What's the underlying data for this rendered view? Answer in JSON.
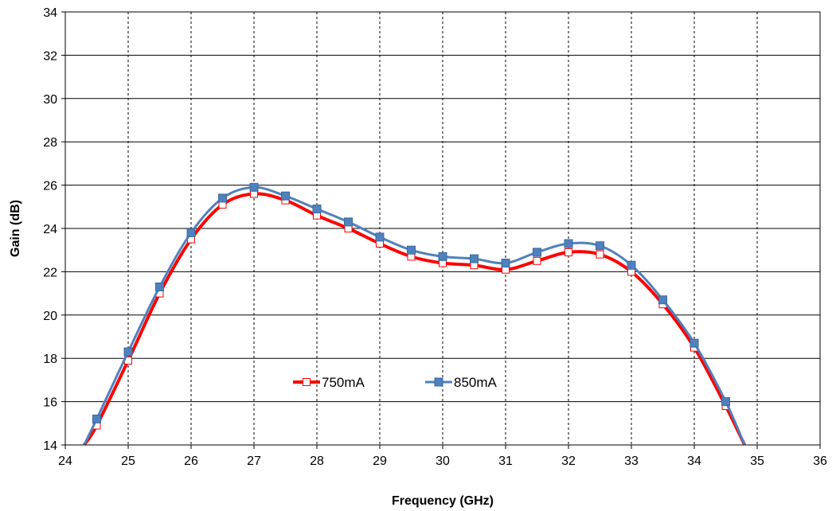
{
  "chart_data": {
    "type": "line",
    "xlabel": "Frequency (GHz)",
    "ylabel": "Gain (dB)",
    "xlim": [
      24,
      36
    ],
    "ylim": [
      14,
      34
    ],
    "xticks": [
      24,
      25,
      26,
      27,
      28,
      29,
      30,
      31,
      32,
      33,
      34,
      35,
      36
    ],
    "yticks": [
      14,
      16,
      18,
      20,
      22,
      24,
      26,
      28,
      30,
      32,
      34
    ],
    "grid": {
      "vertical": "dashed",
      "horizontal": "solid"
    },
    "legend": {
      "placement": "bottom-center-inside"
    },
    "series": [
      {
        "name": "750mA",
        "color": "#ff0000",
        "marker": "open-square",
        "x": [
          24.3,
          24.5,
          25,
          25.5,
          26,
          26.5,
          27,
          27.5,
          28,
          28.5,
          29,
          29.5,
          30,
          30.5,
          31,
          31.5,
          32,
          32.5,
          33,
          33.5,
          34,
          34.5,
          34.8
        ],
        "y": [
          14.0,
          14.9,
          17.9,
          21.0,
          23.5,
          25.1,
          25.6,
          25.3,
          24.6,
          24.0,
          23.3,
          22.7,
          22.4,
          22.3,
          22.1,
          22.5,
          22.9,
          22.8,
          22.0,
          20.5,
          18.5,
          15.8,
          14.0
        ]
      },
      {
        "name": "850mA",
        "color": "#4f81bd",
        "marker": "filled-square",
        "x": [
          24.3,
          24.5,
          25,
          25.5,
          26,
          26.5,
          27,
          27.5,
          28,
          28.5,
          29,
          29.5,
          30,
          30.5,
          31,
          31.5,
          32,
          32.5,
          33,
          33.5,
          34,
          34.5,
          34.8
        ],
        "y": [
          14.0,
          15.2,
          18.3,
          21.3,
          23.8,
          25.4,
          25.9,
          25.5,
          24.9,
          24.3,
          23.6,
          23.0,
          22.7,
          22.6,
          22.4,
          22.9,
          23.3,
          23.2,
          22.3,
          20.7,
          18.7,
          16.0,
          14.0
        ]
      }
    ]
  }
}
